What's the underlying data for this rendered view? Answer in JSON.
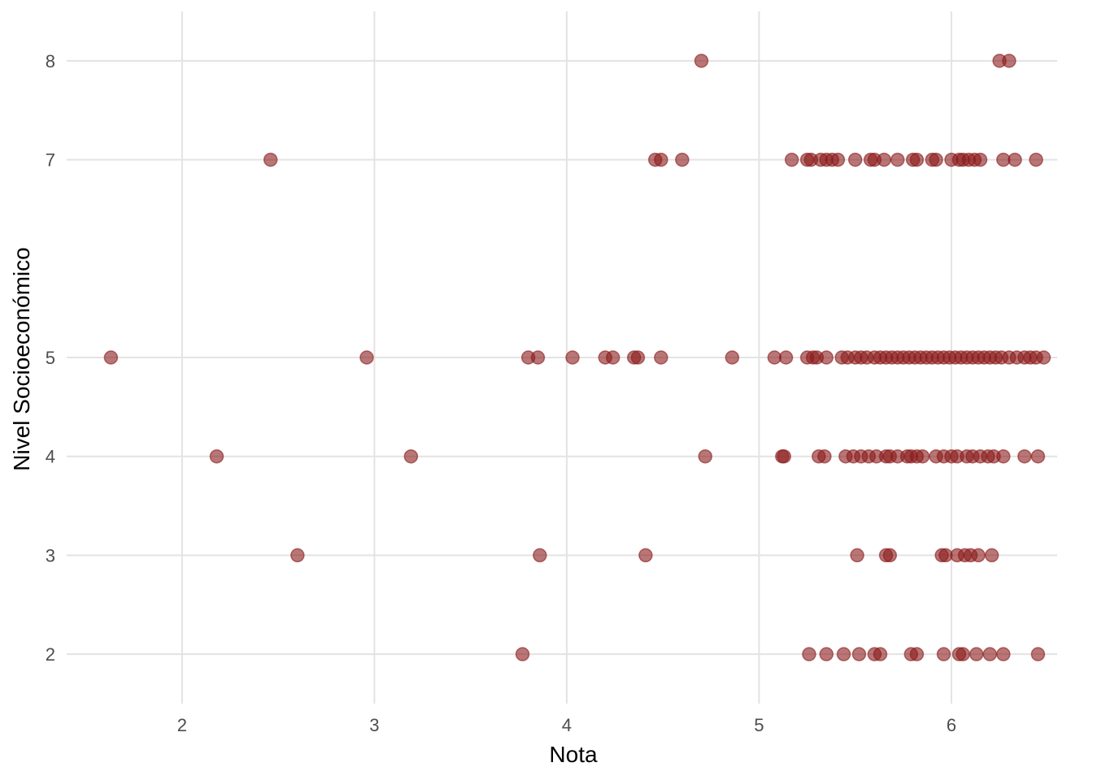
{
  "chart_data": {
    "type": "scatter",
    "title": "",
    "xlabel": "Nota",
    "ylabel": "Nivel Socioeconómico",
    "xlim": [
      1.4,
      6.55
    ],
    "ylim": [
      1.5,
      8.5
    ],
    "x_ticks": [
      2,
      3,
      4,
      5,
      6
    ],
    "y_ticks": [
      2,
      3,
      4,
      5,
      7,
      8
    ],
    "grid": true,
    "legend": "none",
    "point_color": "#8B1A1A",
    "series": [
      {
        "points": [
          {
            "x": 4.7,
            "y": 8
          },
          {
            "x": 6.25,
            "y": 8
          },
          {
            "x": 6.3,
            "y": 8
          },
          {
            "x": 2.46,
            "y": 7
          },
          {
            "x": 4.46,
            "y": 7
          },
          {
            "x": 4.49,
            "y": 7
          },
          {
            "x": 4.6,
            "y": 7
          },
          {
            "x": 5.17,
            "y": 7
          },
          {
            "x": 5.25,
            "y": 7
          },
          {
            "x": 5.27,
            "y": 7
          },
          {
            "x": 5.32,
            "y": 7
          },
          {
            "x": 5.35,
            "y": 7
          },
          {
            "x": 5.38,
            "y": 7
          },
          {
            "x": 5.41,
            "y": 7
          },
          {
            "x": 5.5,
            "y": 7
          },
          {
            "x": 5.58,
            "y": 7
          },
          {
            "x": 5.6,
            "y": 7
          },
          {
            "x": 5.65,
            "y": 7
          },
          {
            "x": 5.72,
            "y": 7
          },
          {
            "x": 5.8,
            "y": 7
          },
          {
            "x": 5.82,
            "y": 7
          },
          {
            "x": 5.9,
            "y": 7
          },
          {
            "x": 5.92,
            "y": 7
          },
          {
            "x": 6.0,
            "y": 7
          },
          {
            "x": 6.04,
            "y": 7
          },
          {
            "x": 6.06,
            "y": 7
          },
          {
            "x": 6.09,
            "y": 7
          },
          {
            "x": 6.12,
            "y": 7
          },
          {
            "x": 6.15,
            "y": 7
          },
          {
            "x": 6.27,
            "y": 7
          },
          {
            "x": 6.33,
            "y": 7
          },
          {
            "x": 6.44,
            "y": 7
          },
          {
            "x": 1.63,
            "y": 5
          },
          {
            "x": 2.96,
            "y": 5
          },
          {
            "x": 3.8,
            "y": 5
          },
          {
            "x": 3.85,
            "y": 5
          },
          {
            "x": 4.03,
            "y": 5
          },
          {
            "x": 4.2,
            "y": 5
          },
          {
            "x": 4.24,
            "y": 5
          },
          {
            "x": 4.35,
            "y": 5
          },
          {
            "x": 4.37,
            "y": 5
          },
          {
            "x": 4.49,
            "y": 5
          },
          {
            "x": 4.86,
            "y": 5
          },
          {
            "x": 5.08,
            "y": 5
          },
          {
            "x": 5.14,
            "y": 5
          },
          {
            "x": 5.25,
            "y": 5
          },
          {
            "x": 5.28,
            "y": 5
          },
          {
            "x": 5.3,
            "y": 5
          },
          {
            "x": 5.35,
            "y": 5
          },
          {
            "x": 5.43,
            "y": 5
          },
          {
            "x": 5.46,
            "y": 5
          },
          {
            "x": 5.5,
            "y": 5
          },
          {
            "x": 5.53,
            "y": 5
          },
          {
            "x": 5.56,
            "y": 5
          },
          {
            "x": 5.6,
            "y": 5
          },
          {
            "x": 5.63,
            "y": 5
          },
          {
            "x": 5.66,
            "y": 5
          },
          {
            "x": 5.69,
            "y": 5
          },
          {
            "x": 5.72,
            "y": 5
          },
          {
            "x": 5.75,
            "y": 5
          },
          {
            "x": 5.78,
            "y": 5
          },
          {
            "x": 5.81,
            "y": 5
          },
          {
            "x": 5.84,
            "y": 5
          },
          {
            "x": 5.87,
            "y": 5
          },
          {
            "x": 5.9,
            "y": 5
          },
          {
            "x": 5.93,
            "y": 5
          },
          {
            "x": 5.96,
            "y": 5
          },
          {
            "x": 5.99,
            "y": 5
          },
          {
            "x": 6.02,
            "y": 5
          },
          {
            "x": 6.05,
            "y": 5
          },
          {
            "x": 6.08,
            "y": 5
          },
          {
            "x": 6.11,
            "y": 5
          },
          {
            "x": 6.14,
            "y": 5
          },
          {
            "x": 6.17,
            "y": 5
          },
          {
            "x": 6.2,
            "y": 5
          },
          {
            "x": 6.23,
            "y": 5
          },
          {
            "x": 6.26,
            "y": 5
          },
          {
            "x": 6.3,
            "y": 5
          },
          {
            "x": 6.34,
            "y": 5
          },
          {
            "x": 6.38,
            "y": 5
          },
          {
            "x": 6.41,
            "y": 5
          },
          {
            "x": 6.44,
            "y": 5
          },
          {
            "x": 6.48,
            "y": 5
          },
          {
            "x": 2.18,
            "y": 4
          },
          {
            "x": 3.19,
            "y": 4
          },
          {
            "x": 4.72,
            "y": 4
          },
          {
            "x": 5.12,
            "y": 4
          },
          {
            "x": 5.13,
            "y": 4
          },
          {
            "x": 5.31,
            "y": 4
          },
          {
            "x": 5.34,
            "y": 4
          },
          {
            "x": 5.45,
            "y": 4
          },
          {
            "x": 5.49,
            "y": 4
          },
          {
            "x": 5.53,
            "y": 4
          },
          {
            "x": 5.57,
            "y": 4
          },
          {
            "x": 5.61,
            "y": 4
          },
          {
            "x": 5.66,
            "y": 4
          },
          {
            "x": 5.68,
            "y": 4
          },
          {
            "x": 5.72,
            "y": 4
          },
          {
            "x": 5.77,
            "y": 4
          },
          {
            "x": 5.79,
            "y": 4
          },
          {
            "x": 5.82,
            "y": 4
          },
          {
            "x": 5.85,
            "y": 4
          },
          {
            "x": 5.92,
            "y": 4
          },
          {
            "x": 5.96,
            "y": 4
          },
          {
            "x": 6.0,
            "y": 4
          },
          {
            "x": 6.03,
            "y": 4
          },
          {
            "x": 6.08,
            "y": 4
          },
          {
            "x": 6.11,
            "y": 4
          },
          {
            "x": 6.15,
            "y": 4
          },
          {
            "x": 6.19,
            "y": 4
          },
          {
            "x": 6.22,
            "y": 4
          },
          {
            "x": 6.27,
            "y": 4
          },
          {
            "x": 6.38,
            "y": 4
          },
          {
            "x": 6.45,
            "y": 4
          },
          {
            "x": 2.6,
            "y": 3
          },
          {
            "x": 3.86,
            "y": 3
          },
          {
            "x": 4.41,
            "y": 3
          },
          {
            "x": 5.51,
            "y": 3
          },
          {
            "x": 5.66,
            "y": 3
          },
          {
            "x": 5.68,
            "y": 3
          },
          {
            "x": 5.95,
            "y": 3
          },
          {
            "x": 5.97,
            "y": 3
          },
          {
            "x": 6.03,
            "y": 3
          },
          {
            "x": 6.07,
            "y": 3
          },
          {
            "x": 6.1,
            "y": 3
          },
          {
            "x": 6.14,
            "y": 3
          },
          {
            "x": 6.21,
            "y": 3
          },
          {
            "x": 3.77,
            "y": 2
          },
          {
            "x": 5.26,
            "y": 2
          },
          {
            "x": 5.35,
            "y": 2
          },
          {
            "x": 5.44,
            "y": 2
          },
          {
            "x": 5.52,
            "y": 2
          },
          {
            "x": 5.6,
            "y": 2
          },
          {
            "x": 5.63,
            "y": 2
          },
          {
            "x": 5.79,
            "y": 2
          },
          {
            "x": 5.82,
            "y": 2
          },
          {
            "x": 5.96,
            "y": 2
          },
          {
            "x": 6.04,
            "y": 2
          },
          {
            "x": 6.06,
            "y": 2
          },
          {
            "x": 6.13,
            "y": 2
          },
          {
            "x": 6.2,
            "y": 2
          },
          {
            "x": 6.27,
            "y": 2
          },
          {
            "x": 6.45,
            "y": 2
          }
        ]
      }
    ]
  }
}
